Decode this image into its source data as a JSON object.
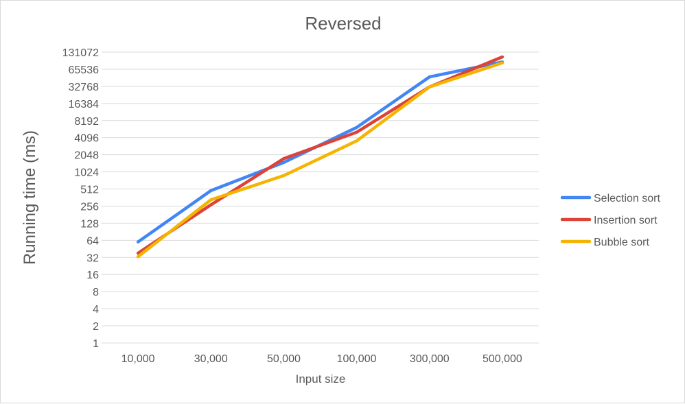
{
  "chart_data": {
    "type": "line",
    "title": "Reversed",
    "xlabel": "Input size",
    "ylabel": "Running time (ms)",
    "y_scale": "log2",
    "ylim": [
      1,
      131072
    ],
    "yticks": [
      "1",
      "2",
      "4",
      "8",
      "16",
      "32",
      "64",
      "128",
      "256",
      "512",
      "1024",
      "2048",
      "4096",
      "8192",
      "16384",
      "32768",
      "65536",
      "131072"
    ],
    "categories": [
      "10,000",
      "30,000",
      "50,000",
      "100,000",
      "300,000",
      "500,000"
    ],
    "series": [
      {
        "name": "Selection sort",
        "color": "#4285f4",
        "values": [
          60,
          480,
          1500,
          6200,
          48000,
          88000
        ]
      },
      {
        "name": "Insertion sort",
        "color": "#db4437",
        "values": [
          38,
          270,
          1750,
          5100,
          32000,
          108000
        ]
      },
      {
        "name": "Bubble sort",
        "color": "#f4b400",
        "values": [
          33,
          330,
          880,
          3600,
          32000,
          85000
        ]
      }
    ],
    "grid": true,
    "legend": "right"
  }
}
